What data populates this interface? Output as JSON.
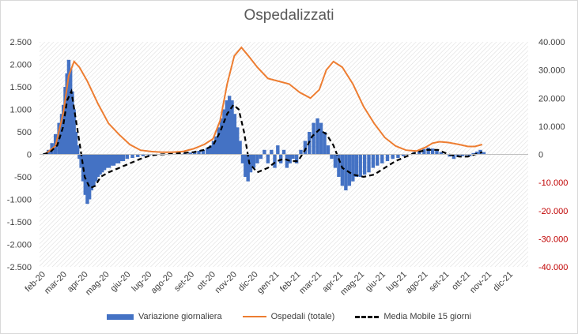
{
  "chart_data": {
    "type": "bar",
    "title": "Ospedalizzati",
    "colors": {
      "bars": "#4472c4",
      "total": "#ed7d31",
      "ma": "#000000",
      "right_axis_negative": "#c00000"
    },
    "grid": true,
    "legend_position": "bottom",
    "x_ticks": [
      "feb-20",
      "mar-20",
      "apr-20",
      "mag-20",
      "giu-20",
      "lug-20",
      "ago-20",
      "set-20",
      "ott-20",
      "nov-20",
      "dic-20",
      "gen-21",
      "feb-21",
      "mar-21",
      "apr-21",
      "mag-21",
      "giu-21",
      "lug-21",
      "ago-21",
      "set-21",
      "ott-21",
      "nov-21",
      "dic-21"
    ],
    "y_left": {
      "ticks": [
        "2.500",
        "2.000",
        "1.500",
        "1.000",
        "500",
        "0",
        "-500",
        "-1.000",
        "-1.500",
        "-2.000",
        "-2.500"
      ],
      "ylim": [
        -2500,
        2500
      ]
    },
    "y_right": {
      "ticks": [
        "40.000",
        "30.000",
        "20.000",
        "10.000",
        "0",
        "-10.000",
        "-20.000",
        "-30.000",
        "-40.000"
      ],
      "ylim": [
        -40000,
        40000
      ]
    },
    "series": [
      {
        "name": "Variazione giornaliera",
        "kind": "bar",
        "axis": "left",
        "points": [
          [
            "feb-20",
            0
          ],
          [
            "feb-20",
            30
          ],
          [
            "feb-20",
            100
          ],
          [
            "feb-20",
            250
          ],
          [
            "feb-20",
            450
          ],
          [
            "feb-20",
            700
          ],
          [
            "mar-20",
            900
          ],
          [
            "mar-20",
            1100
          ],
          [
            "mar-20",
            1500
          ],
          [
            "mar-20",
            1800
          ],
          [
            "mar-20",
            2100
          ],
          [
            "mar-20",
            1900
          ],
          [
            "mar-20",
            1400
          ],
          [
            "mar-20",
            1000
          ],
          [
            "mar-20",
            500
          ],
          [
            "mar-20",
            200
          ],
          [
            "mar-20",
            -100
          ],
          [
            "mar-20",
            -300
          ],
          [
            "apr-20",
            -600
          ],
          [
            "apr-20",
            -900
          ],
          [
            "apr-20",
            -1100
          ],
          [
            "apr-20",
            -1000
          ],
          [
            "apr-20",
            -800
          ],
          [
            "apr-20",
            -700
          ],
          [
            "apr-20",
            -600
          ],
          [
            "apr-20",
            -500
          ],
          [
            "apr-20",
            -450
          ],
          [
            "apr-20",
            -400
          ],
          [
            "mag-20",
            -350
          ],
          [
            "mag-20",
            -300
          ],
          [
            "mag-20",
            -300
          ],
          [
            "mag-20",
            -250
          ],
          [
            "mag-20",
            -250
          ],
          [
            "mag-20",
            -200
          ],
          [
            "mag-20",
            -200
          ],
          [
            "mag-20",
            -150
          ],
          [
            "mag-20",
            -150
          ],
          [
            "giu-20",
            -100
          ],
          [
            "giu-20",
            -80
          ],
          [
            "giu-20",
            -60
          ],
          [
            "giu-20",
            -40
          ],
          [
            "lug-20",
            -20
          ],
          [
            "lug-20",
            -10
          ],
          [
            "lug-20",
            0
          ],
          [
            "ago-20",
            10
          ],
          [
            "ago-20",
            20
          ],
          [
            "ago-20",
            30
          ],
          [
            "set-20",
            40
          ],
          [
            "set-20",
            60
          ],
          [
            "set-20",
            80
          ],
          [
            "set-20",
            100
          ],
          [
            "set-20",
            150
          ],
          [
            "ott-20",
            200
          ],
          [
            "ott-20",
            300
          ],
          [
            "ott-20",
            400
          ],
          [
            "ott-20",
            600
          ],
          [
            "ott-20",
            800
          ],
          [
            "ott-20",
            1000
          ],
          [
            "ott-20",
            1200
          ],
          [
            "ott-20",
            1300
          ],
          [
            "nov-20",
            1200
          ],
          [
            "nov-20",
            900
          ],
          [
            "nov-20",
            600
          ],
          [
            "nov-20",
            300
          ],
          [
            "nov-20",
            -200
          ],
          [
            "nov-20",
            -500
          ],
          [
            "nov-20",
            -600
          ],
          [
            "nov-20",
            -400
          ],
          [
            "dic-20",
            -300
          ],
          [
            "dic-20",
            -200
          ],
          [
            "dic-20",
            -100
          ],
          [
            "dic-20",
            100
          ],
          [
            "dic-20",
            -200
          ],
          [
            "dic-20",
            100
          ],
          [
            "gen-21",
            -300
          ],
          [
            "gen-21",
            200
          ],
          [
            "gen-21",
            -200
          ],
          [
            "gen-21",
            100
          ],
          [
            "gen-21",
            -300
          ],
          [
            "gen-21",
            -200
          ],
          [
            "gen-21",
            -100
          ],
          [
            "feb-21",
            -200
          ],
          [
            "feb-21",
            100
          ],
          [
            "feb-21",
            300
          ],
          [
            "feb-21",
            500
          ],
          [
            "feb-21",
            700
          ],
          [
            "mar-21",
            800
          ],
          [
            "mar-21",
            700
          ],
          [
            "mar-21",
            500
          ],
          [
            "mar-21",
            200
          ],
          [
            "mar-21",
            -100
          ],
          [
            "mar-21",
            -300
          ],
          [
            "apr-21",
            -500
          ],
          [
            "apr-21",
            -700
          ],
          [
            "apr-21",
            -800
          ],
          [
            "apr-21",
            -700
          ],
          [
            "apr-21",
            -600
          ],
          [
            "apr-21",
            -500
          ],
          [
            "mag-21",
            -500
          ],
          [
            "mag-21",
            -450
          ],
          [
            "mag-21",
            -400
          ],
          [
            "mag-21",
            -300
          ],
          [
            "mag-21",
            -250
          ],
          [
            "giu-21",
            -200
          ],
          [
            "giu-21",
            -150
          ],
          [
            "giu-21",
            -100
          ],
          [
            "giu-21",
            -80
          ],
          [
            "lug-21",
            -40
          ],
          [
            "lug-21",
            0
          ],
          [
            "lug-21",
            50
          ],
          [
            "lug-21",
            80
          ],
          [
            "ago-21",
            120
          ],
          [
            "ago-21",
            150
          ],
          [
            "ago-21",
            130
          ],
          [
            "ago-21",
            100
          ],
          [
            "ago-21",
            50
          ],
          [
            "set-21",
            0
          ],
          [
            "set-21",
            -50
          ],
          [
            "set-21",
            -100
          ],
          [
            "set-21",
            -60
          ],
          [
            "set-21",
            -40
          ],
          [
            "ott-21",
            -20
          ],
          [
            "ott-21",
            -40
          ],
          [
            "ott-21",
            30
          ],
          [
            "ott-21",
            60
          ],
          [
            "ott-21",
            100
          ],
          [
            "ott-21",
            50
          ]
        ]
      },
      {
        "name": "Ospedali (totale)",
        "kind": "line",
        "axis": "right",
        "points": [
          [
            "feb-20",
            0
          ],
          [
            "feb-20",
            3000
          ],
          [
            "mar-20",
            15000
          ],
          [
            "mar-20",
            28000
          ],
          [
            "mar-20",
            33000
          ],
          [
            "mar-20",
            31000
          ],
          [
            "apr-20",
            26000
          ],
          [
            "apr-20",
            18000
          ],
          [
            "mag-20",
            11000
          ],
          [
            "mag-20",
            7000
          ],
          [
            "giu-20",
            3500
          ],
          [
            "giu-20",
            1500
          ],
          [
            "lug-20",
            1000
          ],
          [
            "lug-20",
            800
          ],
          [
            "ago-20",
            800
          ],
          [
            "ago-20",
            1000
          ],
          [
            "set-20",
            2000
          ],
          [
            "set-20",
            3500
          ],
          [
            "ott-20",
            5500
          ],
          [
            "ott-20",
            12000
          ],
          [
            "ott-20",
            25000
          ],
          [
            "nov-20",
            35000
          ],
          [
            "nov-20",
            38000
          ],
          [
            "nov-20",
            35000
          ],
          [
            "dic-20",
            31000
          ],
          [
            "dic-20",
            27000
          ],
          [
            "gen-21",
            26000
          ],
          [
            "gen-21",
            25000
          ],
          [
            "feb-21",
            22000
          ],
          [
            "feb-21",
            20000
          ],
          [
            "mar-21",
            23000
          ],
          [
            "mar-21",
            30000
          ],
          [
            "mar-21",
            33000
          ],
          [
            "apr-21",
            31000
          ],
          [
            "apr-21",
            25000
          ],
          [
            "mag-21",
            17000
          ],
          [
            "mag-21",
            11000
          ],
          [
            "giu-21",
            6000
          ],
          [
            "giu-21",
            3000
          ],
          [
            "lug-21",
            1500
          ],
          [
            "lug-21",
            1200
          ],
          [
            "ago-21",
            2500
          ],
          [
            "ago-21",
            4000
          ],
          [
            "ago-21",
            4500
          ],
          [
            "set-21",
            4200
          ],
          [
            "set-21",
            3500
          ],
          [
            "ott-21",
            2800
          ],
          [
            "ott-21",
            2800
          ],
          [
            "ott-21",
            3500
          ]
        ]
      },
      {
        "name": "Media Mobile 15 giorni",
        "kind": "line",
        "axis": "left",
        "points": [
          [
            "feb-20",
            0
          ],
          [
            "feb-20",
            50
          ],
          [
            "feb-20",
            200
          ],
          [
            "mar-20",
            600
          ],
          [
            "mar-20",
            1200
          ],
          [
            "mar-20",
            1400
          ],
          [
            "mar-20",
            800
          ],
          [
            "mar-20",
            200
          ],
          [
            "apr-20",
            -500
          ],
          [
            "apr-20",
            -750
          ],
          [
            "apr-20",
            -700
          ],
          [
            "apr-20",
            -500
          ],
          [
            "mag-20",
            -400
          ],
          [
            "mag-20",
            -300
          ],
          [
            "giu-20",
            -200
          ],
          [
            "giu-20",
            -100
          ],
          [
            "lug-20",
            -20
          ],
          [
            "lug-20",
            0
          ],
          [
            "ago-20",
            10
          ],
          [
            "ago-20",
            30
          ],
          [
            "set-20",
            50
          ],
          [
            "set-20",
            100
          ],
          [
            "ott-20",
            200
          ],
          [
            "ott-20",
            500
          ],
          [
            "ott-20",
            900
          ],
          [
            "nov-20",
            1100
          ],
          [
            "nov-20",
            1000
          ],
          [
            "nov-20",
            500
          ],
          [
            "nov-20",
            -200
          ],
          [
            "dic-20",
            -400
          ],
          [
            "dic-20",
            -300
          ],
          [
            "gen-21",
            -150
          ],
          [
            "gen-21",
            -100
          ],
          [
            "gen-21",
            -150
          ],
          [
            "feb-21",
            -150
          ],
          [
            "feb-21",
            100
          ],
          [
            "feb-21",
            400
          ],
          [
            "mar-21",
            550
          ],
          [
            "mar-21",
            450
          ],
          [
            "mar-21",
            200
          ],
          [
            "apr-21",
            -300
          ],
          [
            "apr-21",
            -450
          ],
          [
            "mag-21",
            -500
          ],
          [
            "mag-21",
            -450
          ],
          [
            "giu-21",
            -300
          ],
          [
            "giu-21",
            -150
          ],
          [
            "lug-21",
            -50
          ],
          [
            "lug-21",
            50
          ],
          [
            "ago-21",
            100
          ],
          [
            "ago-21",
            100
          ],
          [
            "set-21",
            0
          ],
          [
            "set-21",
            -50
          ],
          [
            "ott-21",
            -50
          ],
          [
            "ott-21",
            0
          ],
          [
            "ott-21",
            50
          ]
        ]
      }
    ]
  }
}
